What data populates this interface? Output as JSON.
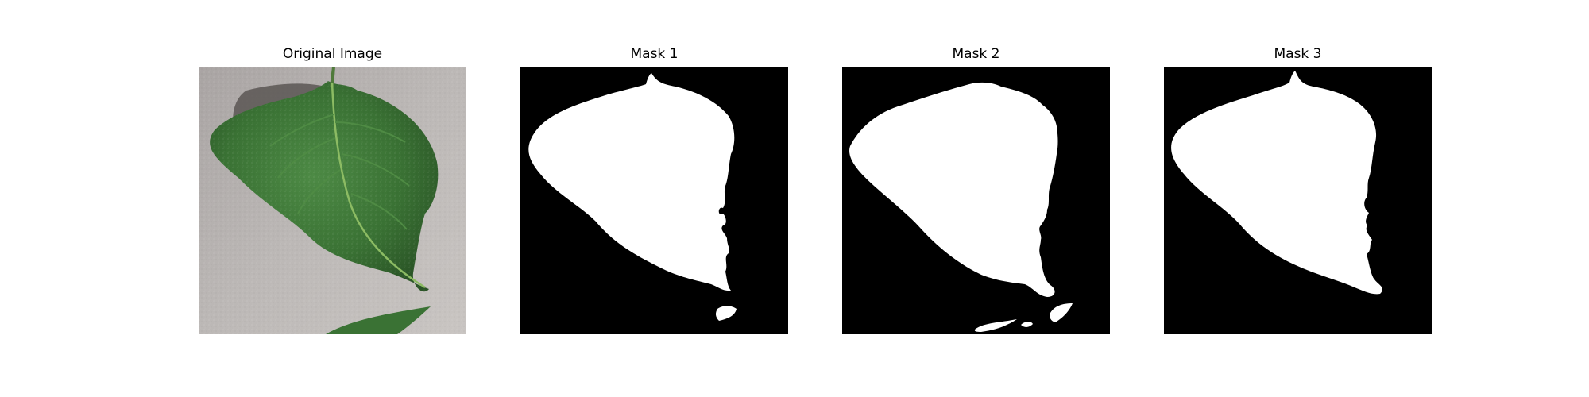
{
  "figure": {
    "panels": [
      {
        "title": "Original Image"
      },
      {
        "title": "Mask 1"
      },
      {
        "title": "Mask 2"
      },
      {
        "title": "Mask 3"
      }
    ]
  },
  "colors": {
    "mask_background": "#000000",
    "mask_foreground": "#ffffff",
    "paper_background": "#b7b2b0",
    "leaf_dark": "#2f5b2c",
    "leaf_mid": "#3f7a3a",
    "leaf_light": "#5c9a4f",
    "leaf_vein": "#8fbf6a",
    "shadow": "#5f5a57"
  }
}
